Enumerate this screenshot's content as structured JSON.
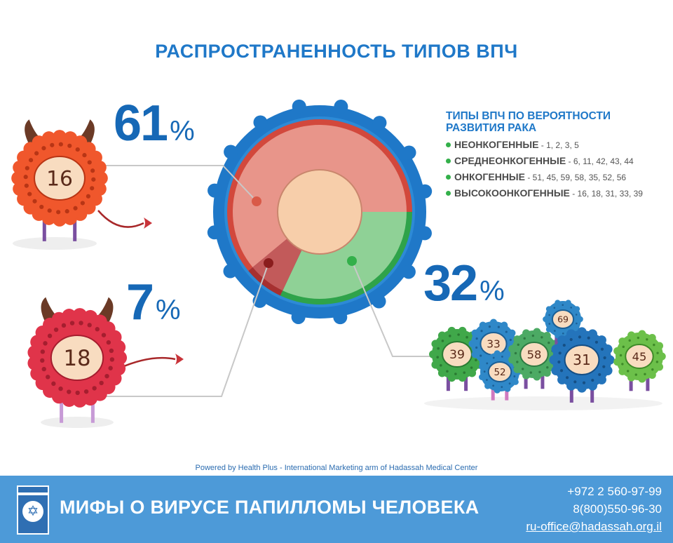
{
  "title": "РАСПРОСТРАНЕННОСТЬ ТИПОВ ВПЧ",
  "chart_data": {
    "type": "pie",
    "categories": [
      "61%",
      "32%",
      "7%"
    ],
    "values": [
      61,
      32,
      7
    ],
    "colors": [
      "#e8958a",
      "#8fd196",
      "#c25a5a"
    ],
    "labels": [
      {
        "value": "61",
        "sign": "%",
        "character_label": "16"
      },
      {
        "value": "32",
        "sign": "%",
        "character_labels": [
          "39",
          "33",
          "52",
          "58",
          "69",
          "31",
          "45"
        ]
      },
      {
        "value": "7",
        "sign": "%",
        "character_label": "18"
      }
    ]
  },
  "legend": {
    "title_line1": "ТИПЫ ВПЧ ПО ВЕРОЯТНОСТИ",
    "title_line2": "РАЗВИТИЯ РАКА",
    "items": [
      {
        "name": "НЕОНКОГЕННЫЕ",
        "types": " - 1, 2, 3, 5"
      },
      {
        "name": "СРЕДНЕОНКОГЕННЫЕ",
        "types": " - 6, 11, 42, 43, 44"
      },
      {
        "name": "ОНКОГЕННЫЕ",
        "types": " - 51, 45, 59, 58, 35, 52, 56"
      },
      {
        "name": "ВЫСОКООНКОГЕННЫЕ",
        "types": " - 16, 18, 31, 33, 39"
      }
    ]
  },
  "credit": "Powered by Health Plus - International Marketing arm of Hadassah Medical Center",
  "footer": {
    "title": "МИФЫ О ВИРУСЕ ПАПИЛЛОМЫ ЧЕЛОВЕКА",
    "phone1": "+972 2 560-97-99",
    "phone2": "8(800)550-96-30",
    "email": "ru-office@hadassah.org.il"
  }
}
